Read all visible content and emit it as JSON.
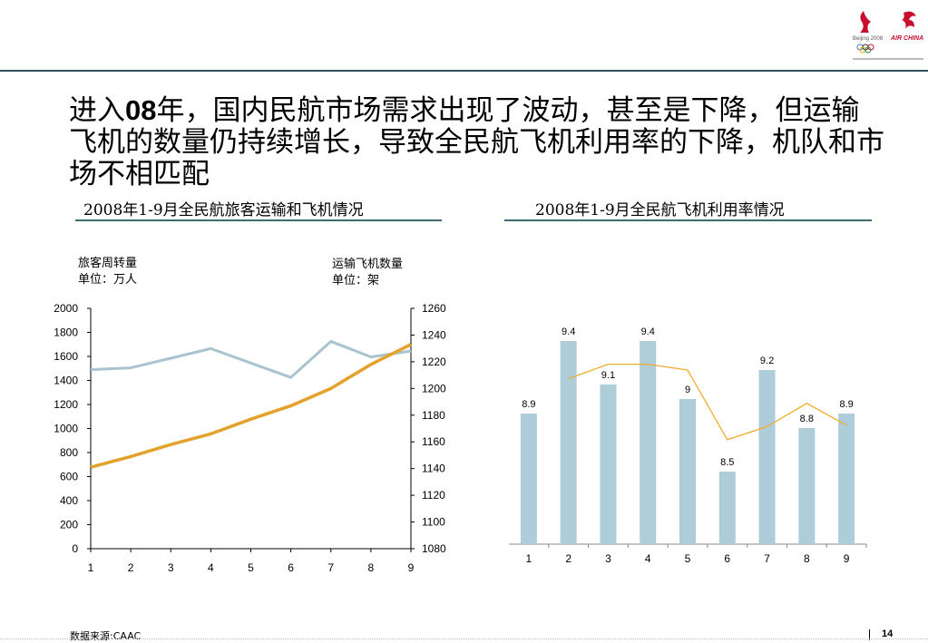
{
  "headline": {
    "part1": "进入",
    "part2": "08",
    "part3": "年，国内民航市场需求出现了波动，甚至是下降，但运输飞机的数量仍持续增长，导致全民航飞机利用率的下降，机队和市场不相匹配"
  },
  "logos": {
    "airline_text": "AIR CHINA",
    "games_text": "Beijing 2008"
  },
  "footer": {
    "source": "数据来源:CAAC",
    "page": "14"
  },
  "chart_data": [
    {
      "type": "line",
      "title": "2008年1-9月全民航旅客运输和飞机情况",
      "ylabel_left": "旅客周转量\n单位：万人",
      "ylabel_right": "运输飞机数量\n单位：架",
      "x": [
        1,
        2,
        3,
        4,
        5,
        6,
        7,
        8,
        9
      ],
      "ylim": [
        0,
        2000
      ],
      "y_ticks": [
        0,
        200,
        400,
        600,
        800,
        1000,
        1200,
        1400,
        1600,
        1800,
        2000
      ],
      "y2lim": [
        1080,
        1260
      ],
      "y2_ticks": [
        1080,
        1100,
        1120,
        1140,
        1160,
        1180,
        1200,
        1220,
        1240,
        1260
      ],
      "series": [
        {
          "axis": "left",
          "color": "#a9c4cf",
          "values": [
            1490,
            1505,
            1585,
            1665,
            1545,
            1425,
            1725,
            1595,
            1645
          ]
        },
        {
          "axis": "right",
          "color": "#e3a22b",
          "values": [
            1141,
            1149,
            1158,
            1166,
            1177,
            1187,
            1200,
            1218,
            1233
          ]
        }
      ]
    },
    {
      "type": "bar",
      "title": "2008年1-9月全民航飞机利用率情况",
      "categories": [
        "1",
        "2",
        "3",
        "4",
        "5",
        "6",
        "7",
        "8",
        "9"
      ],
      "values": [
        8.9,
        9.4,
        9.1,
        9.4,
        9,
        8.5,
        9.2,
        8.8,
        8.9
      ],
      "labels": [
        "8.9",
        "9.4",
        "9.1",
        "9.4",
        "9",
        "8.5",
        "9.2",
        "8.8",
        "8.9"
      ],
      "ylim": [
        8.0,
        9.5
      ],
      "bar_color": "#aecdd9",
      "line": {
        "color": "#f0ad30",
        "points": [
          [
            2,
            9.14
          ],
          [
            3,
            9.24
          ],
          [
            4,
            9.24
          ],
          [
            5,
            9.2
          ],
          [
            6,
            8.72
          ],
          [
            7,
            8.81
          ],
          [
            8,
            8.97
          ],
          [
            9,
            8.82
          ]
        ]
      }
    }
  ]
}
